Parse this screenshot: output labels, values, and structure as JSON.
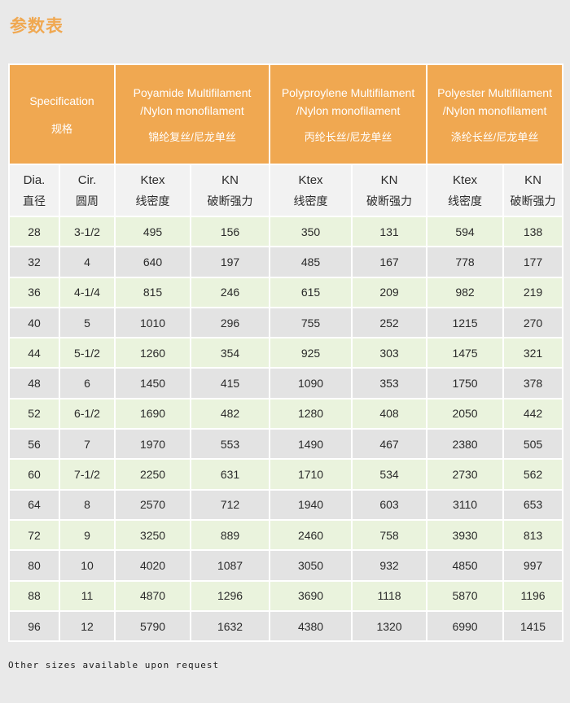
{
  "title": "参数表",
  "footer_note": "Other sizes available upon request",
  "colors": {
    "page_bg": "#e9e9e9",
    "header_bg": "#f0a851",
    "header_text": "#ffffff",
    "subheader_bg": "#f2f2f2",
    "row_green": "#eaf3dd",
    "row_gray": "#e3e3e3",
    "cell_border": "#ffffff",
    "title_color": "#f0a851",
    "body_text": "#2b2b2b"
  },
  "table": {
    "column_groups": [
      {
        "line1": "Specification",
        "line3": "规格"
      },
      {
        "line1": "Poyamide Multifilament",
        "line2": "/Nylon monofilament",
        "line3": "锦纶复丝/尼龙单丝"
      },
      {
        "line1": "Polyproylene Multifilament",
        "line2": "/Nylon monofilament",
        "line3": "丙纶长丝/尼龙单丝"
      },
      {
        "line1": "Polyester Multifilament",
        "line2": "/Nylon monofilament",
        "line3": "涤纶长丝/尼龙单丝"
      }
    ],
    "sub_headers": [
      {
        "en": "Dia.",
        "zh": "直径"
      },
      {
        "en": "Cir.",
        "zh": "圆周"
      },
      {
        "en": "Ktex",
        "zh": "线密度"
      },
      {
        "en": "KN",
        "zh": "破断强力"
      },
      {
        "en": "Ktex",
        "zh": "线密度"
      },
      {
        "en": "KN",
        "zh": "破断强力"
      },
      {
        "en": "Ktex",
        "zh": "线密度"
      },
      {
        "en": "KN",
        "zh": "破断强力"
      }
    ],
    "rows": [
      [
        "28",
        "3-1/2",
        "495",
        "156",
        "350",
        "131",
        "594",
        "138"
      ],
      [
        "32",
        "4",
        "640",
        "197",
        "485",
        "167",
        "778",
        "177"
      ],
      [
        "36",
        "4-1/4",
        "815",
        "246",
        "615",
        "209",
        "982",
        "219"
      ],
      [
        "40",
        "5",
        "1010",
        "296",
        "755",
        "252",
        "1215",
        "270"
      ],
      [
        "44",
        "5-1/2",
        "1260",
        "354",
        "925",
        "303",
        "1475",
        "321"
      ],
      [
        "48",
        "6",
        "1450",
        "415",
        "1090",
        "353",
        "1750",
        "378"
      ],
      [
        "52",
        "6-1/2",
        "1690",
        "482",
        "1280",
        "408",
        "2050",
        "442"
      ],
      [
        "56",
        "7",
        "1970",
        "553",
        "1490",
        "467",
        "2380",
        "505"
      ],
      [
        "60",
        "7-1/2",
        "2250",
        "631",
        "1710",
        "534",
        "2730",
        "562"
      ],
      [
        "64",
        "8",
        "2570",
        "712",
        "1940",
        "603",
        "3110",
        "653"
      ],
      [
        "72",
        "9",
        "3250",
        "889",
        "2460",
        "758",
        "3930",
        "813"
      ],
      [
        "80",
        "10",
        "4020",
        "1087",
        "3050",
        "932",
        "4850",
        "997"
      ],
      [
        "88",
        "11",
        "4870",
        "1296",
        "3690",
        "1118",
        "5870",
        "1196"
      ],
      [
        "96",
        "12",
        "5790",
        "1632",
        "4380",
        "1320",
        "6990",
        "1415"
      ]
    ]
  }
}
